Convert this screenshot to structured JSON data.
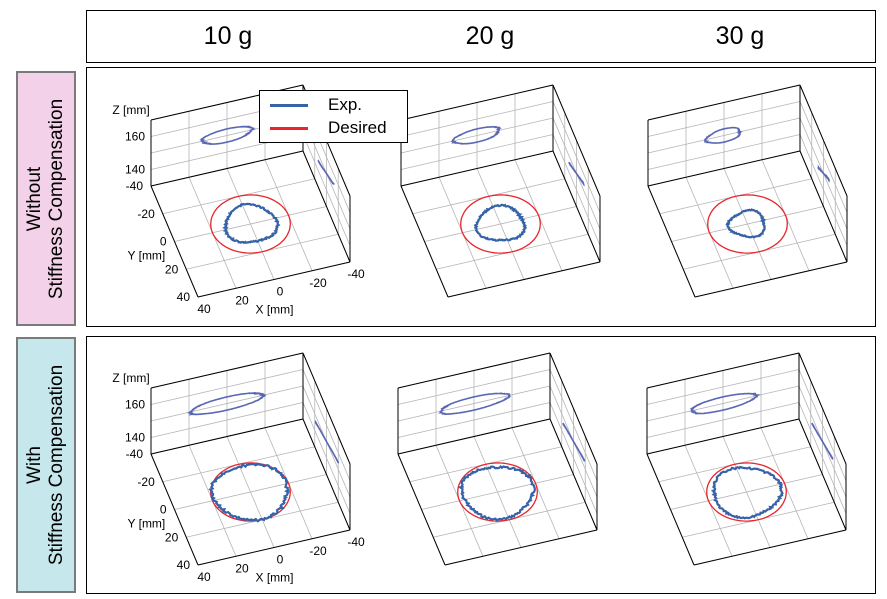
{
  "columns": [
    "10 g",
    "20 g",
    "30 g"
  ],
  "rows": [
    {
      "label_lines": [
        "Without",
        "Stiffness Compensation"
      ],
      "bg": "#f3d2e9"
    },
    {
      "label_lines": [
        "With",
        "Stiffness Compensation"
      ],
      "bg": "#c6e7ec"
    }
  ],
  "legend": [
    {
      "label": "Exp.",
      "color": "#3662a8"
    },
    {
      "label": "Desired",
      "color": "#e8262c"
    }
  ],
  "axes": {
    "z_label": "Z [mm]",
    "y_label": "Y [mm]",
    "x_label": "X [mm]",
    "z_ticks": [
      "160",
      "140"
    ],
    "y_ticks": [
      "-40",
      "-20",
      "0",
      "20",
      "40"
    ],
    "x_ticks": [
      "40",
      "20",
      "0",
      "-20",
      "-40"
    ]
  },
  "chart_data": {
    "type": "line",
    "xlabel": "X [mm]",
    "ylabel": "Y [mm]",
    "zlabel": "Z [mm]",
    "xlim": [
      -40,
      40
    ],
    "ylim": [
      -40,
      40
    ],
    "zlim": [
      130,
      170
    ],
    "desired": {
      "center": [
        0,
        0
      ],
      "radius": 20,
      "z": 150
    },
    "panels": [
      {
        "row": "Without Stiffness Compensation",
        "load": "10 g",
        "exp_center": [
          0,
          0
        ],
        "exp_radius": 13,
        "exp_wobble": 0.06
      },
      {
        "row": "Without Stiffness Compensation",
        "load": "20 g",
        "exp_center": [
          0,
          0
        ],
        "exp_radius": 12,
        "exp_wobble": 0.07
      },
      {
        "row": "Without Stiffness Compensation",
        "load": "30 g",
        "exp_center": [
          0,
          0
        ],
        "exp_radius": 9,
        "exp_wobble": 0.1
      },
      {
        "row": "With Stiffness Compensation",
        "load": "10 g",
        "exp_center": [
          0,
          0
        ],
        "exp_radius": 19,
        "exp_wobble": 0.04
      },
      {
        "row": "With Stiffness Compensation",
        "load": "20 g",
        "exp_center": [
          0,
          0
        ],
        "exp_radius": 18,
        "exp_wobble": 0.05
      },
      {
        "row": "With Stiffness Compensation",
        "load": "30 g",
        "exp_center": [
          0,
          0
        ],
        "exp_radius": 17,
        "exp_wobble": 0.05
      }
    ]
  }
}
